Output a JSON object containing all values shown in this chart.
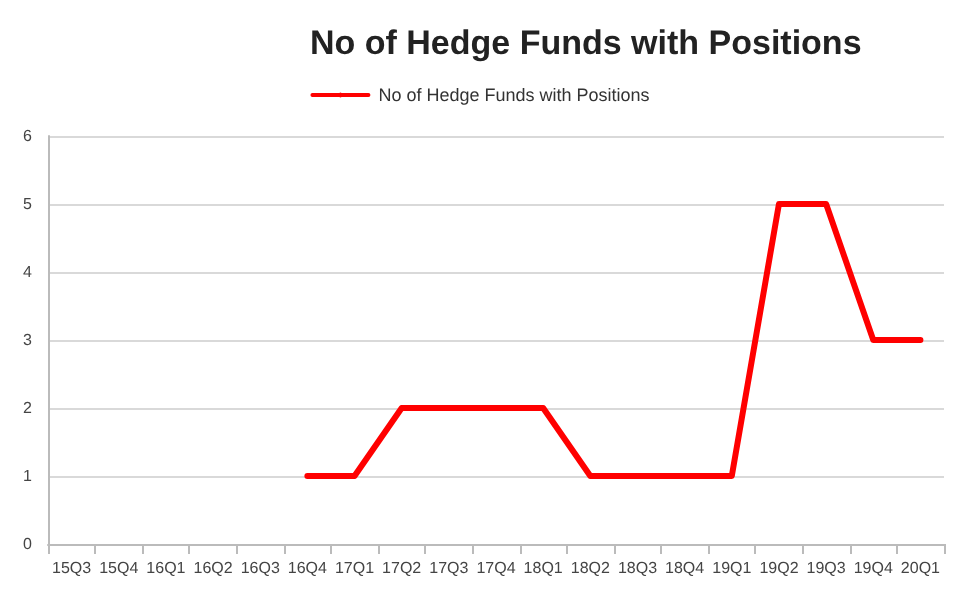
{
  "chart_data": {
    "type": "line",
    "title": "No of Hedge Funds with Positions",
    "categories": [
      "15Q3",
      "15Q4",
      "16Q1",
      "16Q2",
      "16Q3",
      "16Q4",
      "17Q1",
      "17Q2",
      "17Q3",
      "17Q4",
      "18Q1",
      "18Q2",
      "18Q3",
      "18Q4",
      "19Q1",
      "19Q2",
      "19Q3",
      "19Q4",
      "20Q1"
    ],
    "series": [
      {
        "name": "No of Hedge Funds with Positions",
        "color": "#ff0000",
        "values": [
          null,
          null,
          null,
          null,
          null,
          1,
          1,
          2,
          2,
          2,
          2,
          1,
          1,
          1,
          1,
          5,
          5,
          3,
          3
        ]
      }
    ],
    "ylim": [
      0,
      6
    ],
    "yticks": [
      0,
      1,
      2,
      3,
      4,
      5,
      6
    ],
    "grid": "y",
    "legend": "top",
    "marker": "none",
    "line_style": "solid"
  }
}
